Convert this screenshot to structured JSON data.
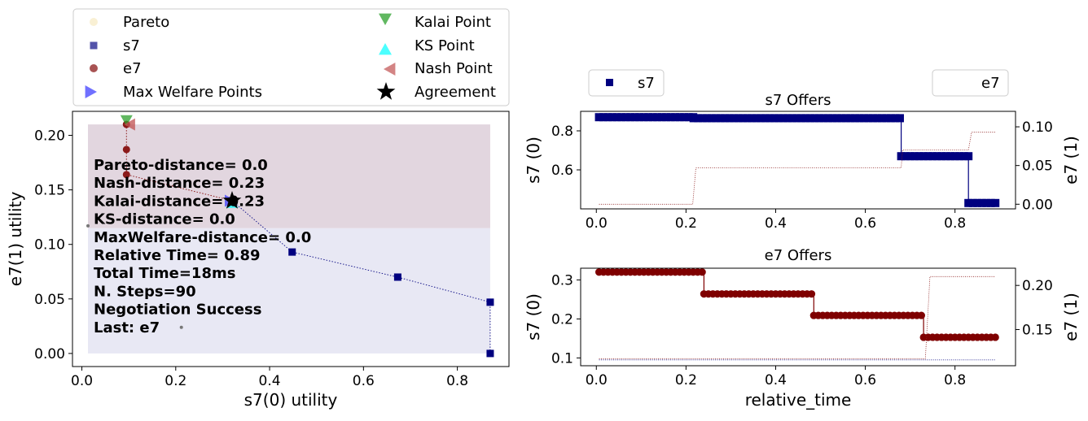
{
  "chart_data": [
    {
      "type": "scatter",
      "xlabel": "s7(0) utility",
      "ylabel": "e7(1) utility",
      "xlim": [
        -0.02,
        0.91
      ],
      "ylim": [
        -0.012,
        0.222
      ],
      "xticks": [
        0.0,
        0.2,
        0.4,
        0.6,
        0.8
      ],
      "xtick_labels": [
        "0.0",
        "0.2",
        "0.4",
        "0.6",
        "0.8"
      ],
      "yticks": [
        0.0,
        0.05,
        0.1,
        0.15,
        0.2
      ],
      "ytick_labels": [
        "0.00",
        "0.05",
        "0.10",
        "0.15",
        "0.20"
      ],
      "legend": [
        {
          "label": "Pareto",
          "marker": "circle",
          "color": "#f5e6b8"
        },
        {
          "label": "s7",
          "marker": "square",
          "color": "#1a1a8c"
        },
        {
          "label": "e7",
          "marker": "circle",
          "color": "#8b1a1a"
        },
        {
          "label": "Max Welfare Points",
          "marker": "triangle-right",
          "color": "#3333ff"
        },
        {
          "label": "Kalai Point",
          "marker": "triangle-down",
          "color": "#2ca02c"
        },
        {
          "label": "KS Point",
          "marker": "triangle-up",
          "color": "#00ffff"
        },
        {
          "label": "Nash Point",
          "marker": "triangle-left",
          "color": "#c05050"
        },
        {
          "label": "Agreement",
          "marker": "star",
          "color": "#000000"
        }
      ],
      "regions": [
        {
          "x": [
            0.013,
            0.87
          ],
          "y": [
            0.0,
            0.115
          ],
          "color": "#e8e8f4"
        },
        {
          "x": [
            0.013,
            0.87
          ],
          "y": [
            0.115,
            0.21
          ],
          "color": "#e2d6df"
        }
      ],
      "outcomes": [
        {
          "x": 0.013,
          "y": 0.117
        },
        {
          "x": 0.212,
          "y": 0.024
        }
      ],
      "pareto": [
        {
          "x": 0.095,
          "y": 0.21
        },
        {
          "x": 0.095,
          "y": 0.187
        },
        {
          "x": 0.095,
          "y": 0.164
        },
        {
          "x": 0.32,
          "y": 0.14
        },
        {
          "x": 0.448,
          "y": 0.093
        },
        {
          "x": 0.673,
          "y": 0.07
        },
        {
          "x": 0.87,
          "y": 0.047
        },
        {
          "x": 0.87,
          "y": 0.0
        }
      ],
      "series": [
        {
          "name": "s7",
          "color": "#1a1a8c",
          "points": [
            {
              "x": 0.87,
              "y": 0.0
            },
            {
              "x": 0.87,
              "y": 0.047
            },
            {
              "x": 0.673,
              "y": 0.07
            },
            {
              "x": 0.448,
              "y": 0.093
            },
            {
              "x": 0.32,
              "y": 0.14
            }
          ]
        },
        {
          "name": "e7",
          "color": "#8b1a1a",
          "points": [
            {
              "x": 0.095,
              "y": 0.21
            },
            {
              "x": 0.095,
              "y": 0.187
            },
            {
              "x": 0.095,
              "y": 0.164
            },
            {
              "x": 0.32,
              "y": 0.14
            }
          ]
        }
      ],
      "special_points": {
        "max_welfare": {
          "x": 0.32,
          "y": 0.14
        },
        "kalai": {
          "x": 0.095,
          "y": 0.214
        },
        "ks": {
          "x": 0.32,
          "y": 0.138
        },
        "nash": {
          "x": 0.103,
          "y": 0.21
        },
        "agreement": {
          "x": 0.32,
          "y": 0.14
        }
      },
      "annotation": [
        "Pareto-distance=  0.0",
        "Nash-distance= 0.23",
        "Kalai-distance= 0.23",
        "KS-distance=  0.0",
        "MaxWelfare-distance=  0.0",
        "Relative Time= 0.89",
        "Total Time=18ms",
        "N. Steps=90",
        "Negotiation Success",
        "Last: e7"
      ]
    },
    {
      "type": "line",
      "title": "s7 Offers",
      "ylabel": "s7 (0)",
      "ylabel_right": "e7 (1)",
      "xlim": [
        -0.035,
        0.935
      ],
      "ylim": [
        0.4,
        0.9
      ],
      "ylim_right": [
        -0.006,
        0.12
      ],
      "xticks": [
        0.0,
        0.2,
        0.4,
        0.6,
        0.8
      ],
      "xtick_labels": [
        "0.0",
        "0.2",
        "0.4",
        "0.6",
        "0.8"
      ],
      "yticks": [
        0.6,
        0.8
      ],
      "ytick_labels": [
        "0.6",
        "0.8"
      ],
      "yticks_right": [
        0.0,
        0.05,
        0.1
      ],
      "ytick_labels_right": [
        "0.00",
        "0.05",
        "0.10"
      ],
      "legend": [
        {
          "label": "s7",
          "color": "#00007f",
          "marker": "square"
        },
        {
          "label": "e7",
          "color": "#ffffff",
          "marker": "none"
        }
      ],
      "series": [
        {
          "name": "s7",
          "color": "#00007f",
          "marker": "square",
          "x": [
            0.006,
            0.217,
            0.217,
            0.68,
            0.68,
            0.83,
            0.83,
            0.89
          ],
          "y": [
            0.87,
            0.87,
            0.865,
            0.865,
            0.67,
            0.67,
            0.43,
            0.43
          ],
          "step": 0.01
        },
        {
          "name": "e7 utility",
          "color": "#8b1a1a",
          "dotted": true,
          "axis": "right",
          "x": [
            0.006,
            0.215,
            0.222,
            0.68,
            0.683,
            0.83,
            0.837,
            0.89
          ],
          "y": [
            0.0,
            0.0,
            0.047,
            0.047,
            0.07,
            0.07,
            0.093,
            0.093
          ]
        }
      ]
    },
    {
      "type": "line",
      "title": "e7 Offers",
      "xlabel": "relative_time",
      "ylabel": "s7 (0)",
      "ylabel_right": "e7 (1)",
      "xlim": [
        -0.035,
        0.935
      ],
      "ylim": [
        0.08,
        0.33
      ],
      "ylim_right": [
        0.109,
        0.2195
      ],
      "xticks": [
        0.0,
        0.2,
        0.4,
        0.6,
        0.8
      ],
      "xtick_labels": [
        "0.0",
        "0.2",
        "0.4",
        "0.6",
        "0.8"
      ],
      "yticks": [
        0.1,
        0.2,
        0.3
      ],
      "ytick_labels": [
        "0.1",
        "0.2",
        "0.3"
      ],
      "yticks_right": [
        0.15,
        0.2
      ],
      "ytick_labels_right": [
        "0.15",
        "0.20"
      ],
      "series": [
        {
          "name": "e7",
          "color": "#7f0000",
          "marker": "circle",
          "x": [
            0.006,
            0.24,
            0.24,
            0.485,
            0.485,
            0.73,
            0.73,
            0.89
          ],
          "y": [
            0.32,
            0.32,
            0.264,
            0.264,
            0.209,
            0.209,
            0.153,
            0.153
          ],
          "step": 0.01
        },
        {
          "name": "s7 utility",
          "color": "#1a1a8c",
          "dotted": true,
          "axis": "left",
          "x": [
            0.006,
            0.734,
            0.744,
            0.89
          ],
          "y": [
            0.095,
            0.095,
            0.095,
            0.095
          ]
        },
        {
          "name": "e7 utility",
          "color": "#8b1a1a",
          "dotted": true,
          "axis": "right",
          "x": [
            0.006,
            0.734,
            0.744,
            0.89
          ],
          "y": [
            0.117,
            0.117,
            0.21,
            0.21
          ]
        }
      ]
    }
  ]
}
